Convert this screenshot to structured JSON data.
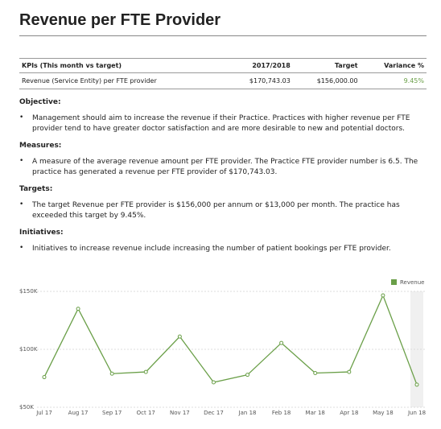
{
  "header": {
    "title": "Revenue per FTE Provider"
  },
  "table": {
    "columns": [
      "KPIs (This month vs target)",
      "2017/2018",
      "Target",
      "Variance %"
    ],
    "rows": [
      [
        "Revenue (Service Entity) per FTE provider",
        "$170,743.03",
        "$156,000.00",
        "9.45%"
      ]
    ]
  },
  "sections": [
    {
      "heading": "Objective:",
      "text": "Management should aim to increase the revenue if their Practice. Practices with higher revenue per FTE provider tend to have greater doctor satisfaction and are more desirable to new and potential doctors."
    },
    {
      "heading": "Measures:",
      "text": "A measure of the average revenue amount per FTE provider. The Practice FTE provider number is 6.5. The practice has generated a revenue per FTE provider of $170,743.03."
    },
    {
      "heading": "Targets:",
      "text": "The target Revenue per FTE provider is $156,000 per annum or $13,000 per month. The practice has exceeded this target by 9.45%."
    },
    {
      "heading": "Initiatives:",
      "text": "Initiatives to increase revenue include increasing the number of patient bookings per FTE provider."
    }
  ],
  "chart_data": {
    "type": "line",
    "categories": [
      "Jul 17",
      "Aug 17",
      "Sep 17",
      "Oct 17",
      "Nov 17",
      "Dec 17",
      "Jan 18",
      "Feb 18",
      "Mar 18",
      "Apr 18",
      "May 18",
      "Jun 18"
    ],
    "series": [
      {
        "name": "Revenue",
        "color": "#6a9f48",
        "values": [
          76000,
          135000,
          79000,
          80500,
          111000,
          71500,
          78000,
          105500,
          79500,
          80500,
          146500,
          69500
        ]
      }
    ],
    "ylim": [
      50000,
      150000
    ],
    "yticks": [
      {
        "value": 50000,
        "label": "$50K"
      },
      {
        "value": 100000,
        "label": "$100K"
      },
      {
        "value": 150000,
        "label": "$150K"
      }
    ],
    "grid": true,
    "legend": "top-right"
  }
}
